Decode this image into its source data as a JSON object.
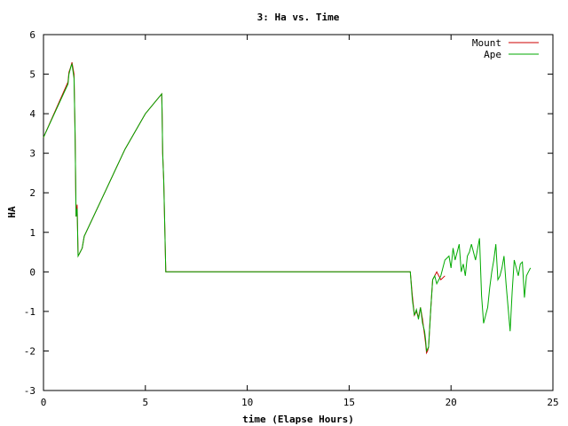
{
  "chart_data": {
    "type": "line",
    "title": "3: Ha vs. Time",
    "xlabel": "time (Elapse Hours)",
    "ylabel": "HA",
    "xlim": [
      0,
      25
    ],
    "ylim": [
      -3,
      6
    ],
    "xticks": [
      0,
      5,
      10,
      15,
      20,
      25
    ],
    "yticks": [
      -3,
      -2,
      -1,
      0,
      1,
      2,
      3,
      4,
      5,
      6
    ],
    "grid": false,
    "legend_position": "top-right",
    "series": [
      {
        "name": "Mount",
        "color": "#cc0000",
        "x": [
          0,
          1.2,
          1.25,
          1.35,
          1.4,
          1.5,
          1.55,
          1.6,
          1.65,
          1.7,
          1.75,
          1.8,
          1.85,
          1.9,
          2.0,
          3.0,
          4.0,
          5.0,
          5.8,
          5.82,
          5.85,
          5.9,
          6.0,
          10.0,
          15.0,
          18.0,
          18.1,
          18.2,
          18.3,
          18.4,
          18.5,
          18.6,
          18.7,
          18.75,
          18.8,
          18.85,
          18.9,
          19.0,
          19.1,
          19.2,
          19.3,
          19.5,
          19.7
        ],
        "y": [
          3.4,
          4.8,
          5.05,
          5.2,
          5.3,
          5.0,
          3.5,
          1.4,
          1.7,
          0.4,
          0.45,
          0.5,
          0.55,
          0.6,
          0.9,
          2.0,
          3.1,
          4.0,
          4.5,
          4.1,
          3.0,
          2.3,
          0.0,
          0.0,
          0.0,
          0.0,
          -0.6,
          -1.1,
          -1.0,
          -1.15,
          -0.9,
          -1.2,
          -1.6,
          -1.8,
          -2.05,
          -2.0,
          -1.9,
          -1.0,
          -0.2,
          -0.1,
          0.0,
          -0.2,
          -0.1
        ]
      },
      {
        "name": "Ape",
        "color": "#00aa00",
        "x": [
          0,
          1.2,
          1.25,
          1.35,
          1.4,
          1.5,
          1.55,
          1.6,
          1.65,
          1.7,
          1.75,
          1.8,
          1.85,
          1.9,
          2.0,
          3.0,
          4.0,
          5.0,
          5.8,
          5.82,
          5.85,
          5.9,
          6.0,
          10.0,
          15.0,
          18.0,
          18.1,
          18.2,
          18.3,
          18.4,
          18.5,
          18.6,
          18.7,
          18.75,
          18.8,
          18.85,
          18.9,
          19.0,
          19.1,
          19.2,
          19.3,
          19.5,
          19.7,
          19.9,
          20.0,
          20.1,
          20.2,
          20.3,
          20.4,
          20.5,
          20.6,
          20.7,
          20.8,
          20.9,
          21.0,
          21.2,
          21.4,
          21.5,
          21.6,
          21.7,
          21.8,
          21.9,
          22.0,
          22.1,
          22.2,
          22.3,
          22.4,
          22.5,
          22.6,
          22.7,
          22.8,
          22.9,
          23.0,
          23.1,
          23.2,
          23.3,
          23.4,
          23.5,
          23.6,
          23.7,
          23.8,
          23.9
        ],
        "y": [
          3.4,
          4.75,
          5.0,
          5.2,
          5.25,
          4.9,
          3.5,
          1.4,
          1.6,
          0.4,
          0.45,
          0.5,
          0.55,
          0.6,
          0.9,
          2.0,
          3.1,
          4.0,
          4.5,
          4.1,
          3.0,
          2.3,
          0.0,
          0.0,
          0.0,
          0.0,
          -0.7,
          -1.1,
          -0.95,
          -1.2,
          -0.9,
          -1.3,
          -1.5,
          -1.7,
          -2.0,
          -1.95,
          -1.9,
          -1.0,
          -0.2,
          -0.1,
          -0.3,
          -0.1,
          0.3,
          0.4,
          0.1,
          0.6,
          0.3,
          0.5,
          0.7,
          0.0,
          0.2,
          -0.1,
          0.4,
          0.5,
          0.7,
          0.3,
          0.85,
          -0.6,
          -1.3,
          -1.1,
          -0.9,
          -0.4,
          0.0,
          0.3,
          0.7,
          -0.2,
          -0.1,
          0.1,
          0.4,
          -0.3,
          -0.9,
          -1.5,
          -0.5,
          0.3,
          0.1,
          -0.1,
          0.2,
          0.25,
          -0.65,
          -0.1,
          0.0,
          0.1
        ]
      }
    ]
  }
}
